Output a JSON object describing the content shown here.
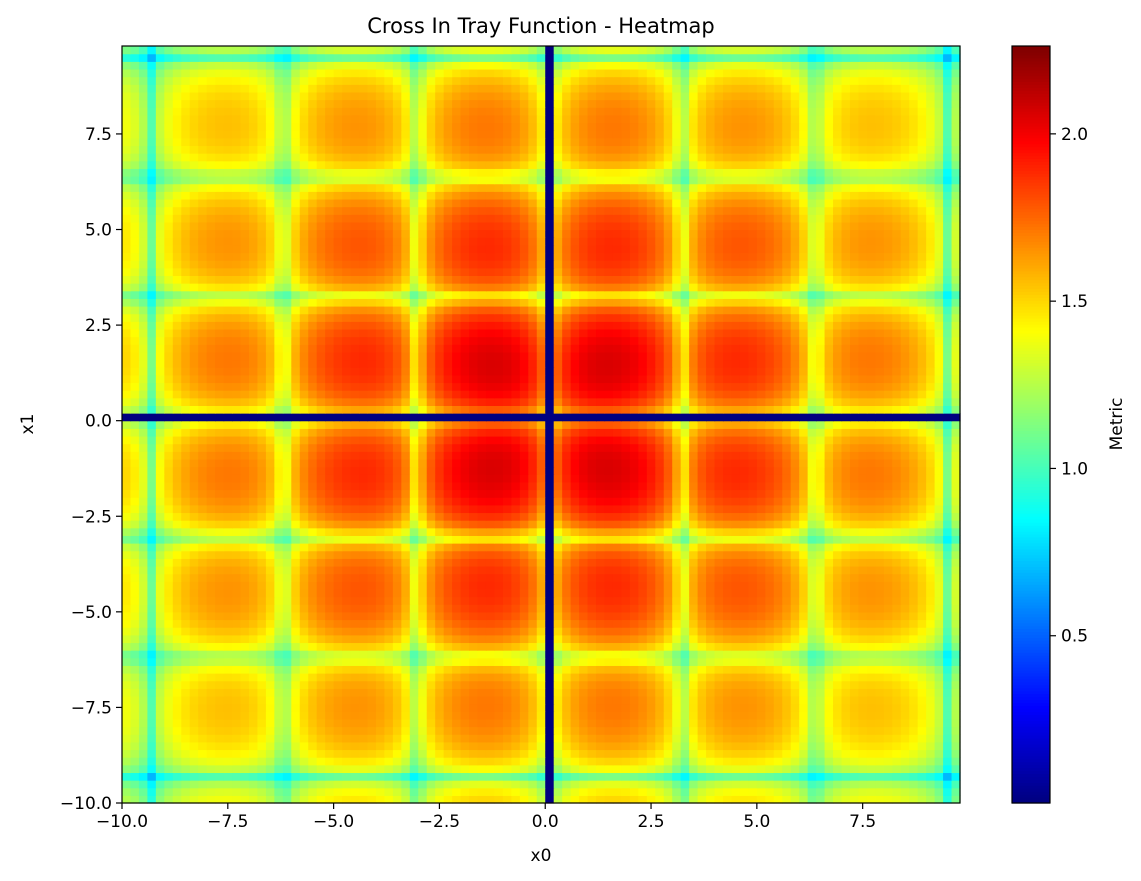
{
  "chart_data": {
    "type": "heatmap",
    "title": "Cross In Tray Function - Heatmap",
    "xlabel": "x0",
    "ylabel": "x1",
    "colorbar_label": "Metric",
    "colormap": "jet",
    "function": "cross-in-tray",
    "metric": "-f(x0,x1)",
    "xlim": [
      -10.0,
      9.8
    ],
    "ylim": [
      -10.0,
      9.8
    ],
    "grid_step": 0.2,
    "vmin": 0.0001,
    "vmax": 2.2626,
    "xticks": [
      -10.0,
      -7.5,
      -5.0,
      -2.5,
      0.0,
      2.5,
      5.0,
      7.5
    ],
    "xtick_labels": [
      "−10.0",
      "−7.5",
      "−5.0",
      "−2.5",
      "0.0",
      "2.5",
      "5.0",
      "7.5"
    ],
    "yticks": [
      -10.0,
      -7.5,
      -5.0,
      -2.5,
      0.0,
      2.5,
      5.0,
      7.5
    ],
    "ytick_labels": [
      "−10.0",
      "−7.5",
      "−5.0",
      "−2.5",
      "0.0",
      "2.5",
      "5.0",
      "7.5"
    ],
    "colorbar_ticks": [
      0.5,
      1.0,
      1.5,
      2.0
    ],
    "colorbar_tick_labels": [
      "0.5",
      "1.0",
      "1.5",
      "2.0"
    ],
    "global_maxima": [
      [
        1.35,
        1.35
      ],
      [
        -1.35,
        1.35
      ],
      [
        1.35,
        -1.35
      ],
      [
        -1.35,
        -1.35
      ]
    ],
    "global_max_value": 2.2626
  }
}
